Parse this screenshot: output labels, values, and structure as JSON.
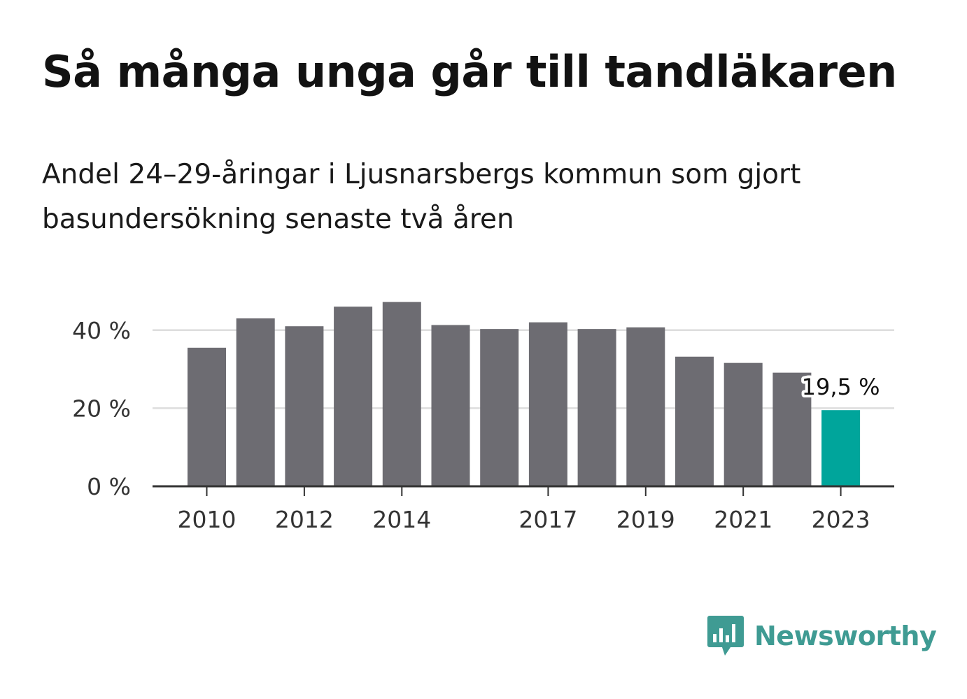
{
  "title": "Så många unga går till tandläkaren",
  "subtitle": "Andel 24–29-åringar i Ljusnarsbergs kommun som gjort basundersökning senaste två åren",
  "brand": {
    "name": "Newsworthy",
    "color": "#3f9b93"
  },
  "colors": {
    "bar": "#6d6c72",
    "highlight": "#00a59b",
    "grid": "#dddddd",
    "axis": "#333333"
  },
  "chart_data": {
    "type": "bar",
    "categories": [
      "2010",
      "2011",
      "2012",
      "2013",
      "2014",
      "2015",
      "2016",
      "2017",
      "2018",
      "2019",
      "2020",
      "2021",
      "2022",
      "2023"
    ],
    "values": [
      35.5,
      43,
      41,
      46,
      47.2,
      41.3,
      40.3,
      42,
      40.3,
      40.7,
      33.2,
      31.6,
      29.1,
      19.5
    ],
    "x_tick_labels": [
      "2010",
      "2012",
      "2014",
      "2017",
      "2019",
      "2021",
      "2023"
    ],
    "y_ticks": [
      0,
      20,
      40
    ],
    "y_tick_labels": [
      "0 %",
      "20 %",
      "40 %"
    ],
    "ylim": [
      0,
      50
    ],
    "highlight_index": 13,
    "annotation": "19,5 %",
    "grid": true
  }
}
